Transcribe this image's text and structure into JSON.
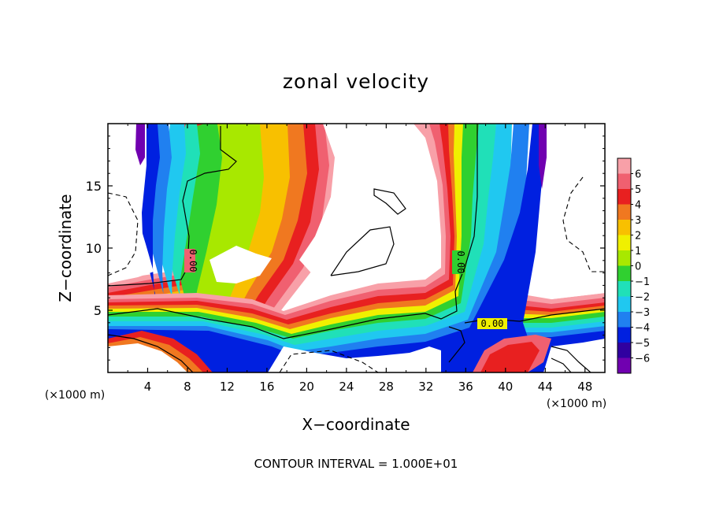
{
  "chart_data": {
    "type": "heatmap",
    "title": "zonal velocity",
    "xlabel": "X−coordinate",
    "ylabel": "Z−coordinate",
    "x_unit_label": "(×1000 m)",
    "z_unit_label": "(×1000 m)",
    "xlim": [
      0,
      50
    ],
    "ylim": [
      0,
      20
    ],
    "x_ticks": [
      4,
      8,
      12,
      16,
      20,
      24,
      28,
      32,
      36,
      40,
      44,
      48
    ],
    "y_ticks": [
      5,
      10,
      15
    ],
    "colorbar": {
      "levels": [
        6,
        5,
        4,
        3,
        2,
        1,
        0,
        -1,
        -2,
        -3,
        -4,
        -5,
        -6
      ],
      "labels": [
        "6",
        "5",
        "4",
        "3",
        "2",
        "1",
        "0",
        "−1",
        "−2",
        "−3",
        "−4",
        "−5",
        "−6"
      ],
      "colors": [
        "#f8a0a8",
        "#f06070",
        "#e82020",
        "#f07820",
        "#f8c000",
        "#f0f000",
        "#a8e800",
        "#30d030",
        "#20e0b8",
        "#20c8f0",
        "#2080f0",
        "#0020e0",
        "#3000a0",
        "#7000b0"
      ]
    },
    "contour_labels": [
      {
        "text": "0.00",
        "x": 8.3,
        "z": 8.6,
        "rotate": 90
      },
      {
        "text": "0.00",
        "x": 35.1,
        "z": 8.6,
        "rotate": 90
      },
      {
        "text": "0.00",
        "x": 39.0,
        "z": 3.9,
        "rotate": 0
      }
    ],
    "contour_interval_text": "CONTOUR INTERVAL =  1.000E+01"
  }
}
